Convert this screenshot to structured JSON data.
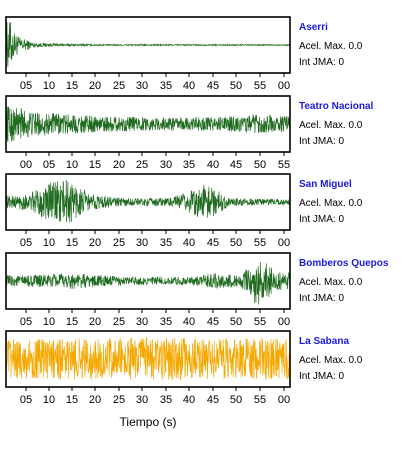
{
  "chart_data": {
    "type": "line",
    "xlabel": "Tiempo (s)",
    "panels": [
      {
        "station": "Aserri",
        "acel_label": "Acel. Max.",
        "acel_value": "0.0",
        "int_label": "Int JMA:",
        "int_value": "0",
        "color": "#1f6b1f",
        "tick_labels": [
          "05",
          "10",
          "15",
          "20",
          "25",
          "30",
          "35",
          "40",
          "45",
          "50",
          "55",
          "00"
        ],
        "envelope": [
          [
            0,
            0.9
          ],
          [
            1,
            0.9
          ],
          [
            1.5,
            0.55
          ],
          [
            3,
            0.28
          ],
          [
            6,
            0.1
          ],
          [
            10,
            0.05
          ],
          [
            20,
            0.03
          ],
          [
            61,
            0.02
          ]
        ]
      },
      {
        "station": "Teatro Nacional",
        "acel_label": "Acel. Max.",
        "acel_value": "0.0",
        "int_label": "Int JMA:",
        "int_value": "0",
        "color": "#1f6b1f",
        "tick_labels": [
          "00",
          "05",
          "10",
          "15",
          "20",
          "25",
          "30",
          "35",
          "40",
          "45",
          "50",
          "55"
        ],
        "envelope": [
          [
            0,
            0.7
          ],
          [
            3,
            0.65
          ],
          [
            6,
            0.45
          ],
          [
            10,
            0.4
          ],
          [
            20,
            0.3
          ],
          [
            30,
            0.25
          ],
          [
            45,
            0.25
          ],
          [
            55,
            0.35
          ],
          [
            61,
            0.3
          ]
        ]
      },
      {
        "station": "San Miguel",
        "acel_label": "Acel. Max.",
        "acel_value": "0.0",
        "int_label": "Int JMA:",
        "int_value": "0",
        "color": "#1f6b1f",
        "tick_labels": [
          "05",
          "10",
          "15",
          "20",
          "25",
          "30",
          "35",
          "40",
          "45",
          "50",
          "55",
          "00"
        ],
        "envelope": [
          [
            0,
            0.25
          ],
          [
            5,
            0.3
          ],
          [
            8,
            0.6
          ],
          [
            12,
            0.9
          ],
          [
            15,
            0.7
          ],
          [
            18,
            0.3
          ],
          [
            25,
            0.15
          ],
          [
            35,
            0.15
          ],
          [
            38,
            0.3
          ],
          [
            43,
            0.7
          ],
          [
            45,
            0.5
          ],
          [
            48,
            0.15
          ],
          [
            55,
            0.12
          ],
          [
            61,
            0.1
          ]
        ]
      },
      {
        "station": "Bomberos Quepos",
        "acel_label": "Acel. Max.",
        "acel_value": "0.0",
        "int_label": "Int JMA:",
        "int_value": "0",
        "color": "#1f6b1f",
        "tick_labels": [
          "05",
          "10",
          "15",
          "20",
          "25",
          "30",
          "35",
          "40",
          "45",
          "50",
          "55",
          "00"
        ],
        "envelope": [
          [
            0,
            0.2
          ],
          [
            10,
            0.25
          ],
          [
            14,
            0.3
          ],
          [
            25,
            0.15
          ],
          [
            40,
            0.15
          ],
          [
            45,
            0.3
          ],
          [
            50,
            0.2
          ],
          [
            52,
            0.5
          ],
          [
            54,
            0.95
          ],
          [
            56,
            0.7
          ],
          [
            58,
            0.35
          ],
          [
            61,
            0.3
          ]
        ]
      },
      {
        "station": "La Sabana",
        "acel_label": "Acel. Max.",
        "acel_value": "0.0",
        "int_label": "Int JMA:",
        "int_value": "0",
        "color": "#f5a800",
        "tick_labels": [
          "05",
          "10",
          "15",
          "20",
          "25",
          "30",
          "35",
          "40",
          "45",
          "50",
          "55",
          "00"
        ],
        "envelope": [
          [
            0,
            0.75
          ],
          [
            30,
            0.8
          ],
          [
            61,
            0.75
          ]
        ]
      }
    ]
  }
}
